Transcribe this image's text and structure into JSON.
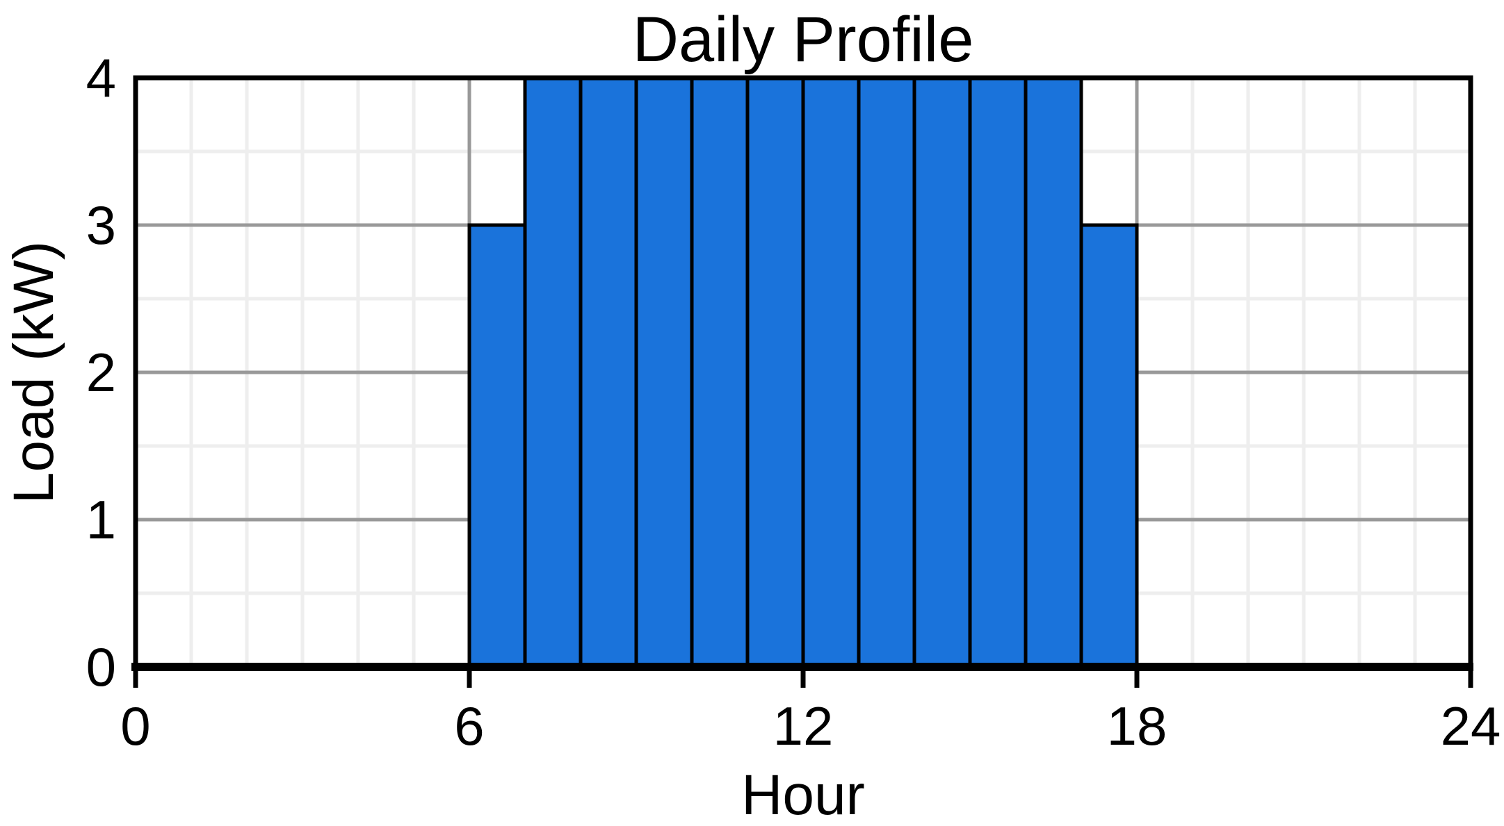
{
  "chart_data": {
    "type": "bar",
    "title": "Daily Profile",
    "xlabel": "Hour",
    "ylabel": "Load (kW)",
    "x": [
      0,
      1,
      2,
      3,
      4,
      5,
      6,
      7,
      8,
      9,
      10,
      11,
      12,
      13,
      14,
      15,
      16,
      17,
      18,
      19,
      20,
      21,
      22,
      23
    ],
    "values": [
      0,
      0,
      0,
      0,
      0,
      0,
      3,
      4,
      4,
      4,
      4,
      4,
      4,
      4,
      4,
      4,
      4,
      3,
      0,
      0,
      0,
      0,
      0,
      0
    ],
    "xlim": [
      0,
      24
    ],
    "ylim": [
      0,
      4
    ],
    "xticks": [
      "0",
      "6",
      "12",
      "18",
      "24"
    ],
    "yticks": [
      "0",
      "1",
      "2",
      "3",
      "4"
    ],
    "grid": true,
    "bar_color": "#1a73db",
    "bar_edge_color": "#000000",
    "major_grid_color": "#999999",
    "minor_grid_color": "#eeeeee",
    "x_tick_color": "#000000"
  }
}
